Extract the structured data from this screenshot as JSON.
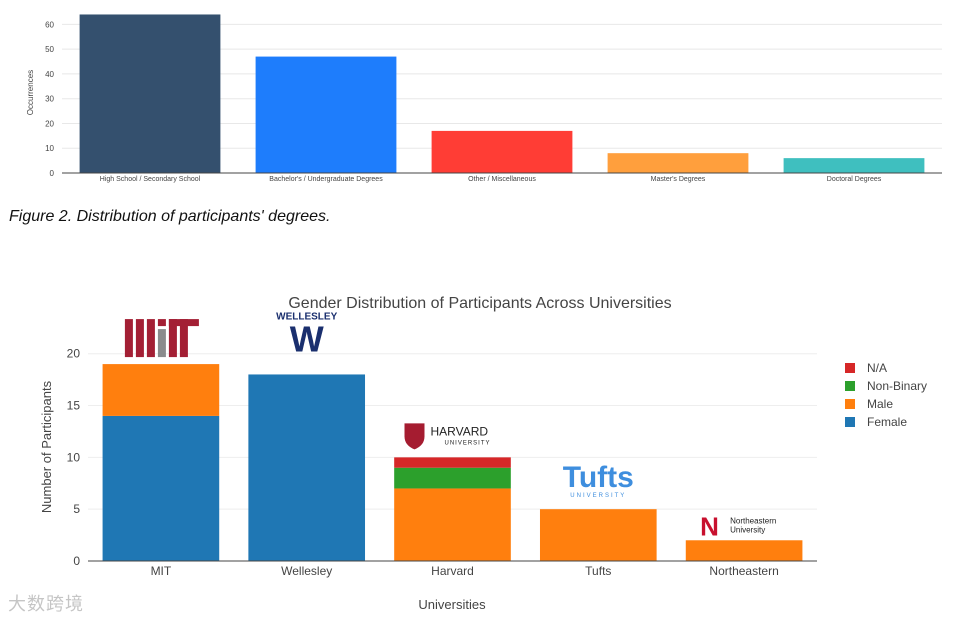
{
  "figure_caption": "Figure 2. Distribution of participants' degrees.",
  "watermark": "大数跨境",
  "chart_data": [
    {
      "type": "bar",
      "title": "",
      "xlabel": "",
      "ylabel": "Occurrences",
      "ylim": [
        0,
        65
      ],
      "yticks": [
        0,
        10,
        20,
        30,
        40,
        50,
        60
      ],
      "grid": true,
      "categories": [
        "High School / Secondary School",
        "Bachelor's / Undergraduate Degrees",
        "Other / Miscellaneous",
        "Master's Degrees",
        "Doctoral Degrees"
      ],
      "values": [
        64,
        47,
        17,
        8,
        6
      ],
      "colors": [
        "#34506e",
        "#1e7dfc",
        "#ff3d35",
        "#ff9f3d",
        "#3fbfbf"
      ]
    },
    {
      "type": "bar",
      "stacked": true,
      "title": "Gender Distribution of Participants Across Universities",
      "xlabel": "Universities",
      "ylabel": "Number of Participants",
      "ylim": [
        0,
        22
      ],
      "yticks": [
        0,
        5,
        10,
        15,
        20
      ],
      "grid": true,
      "legend_position": "right",
      "categories": [
        "MIT",
        "Wellesley",
        "Harvard",
        "Tufts",
        "Northeastern"
      ],
      "series": [
        {
          "name": "Female",
          "color": "#1f77b4",
          "values": [
            14,
            18,
            0,
            0,
            0
          ]
        },
        {
          "name": "Male",
          "color": "#ff7f0e",
          "values": [
            5,
            0,
            7,
            5,
            2
          ]
        },
        {
          "name": "Non-Binary",
          "color": "#2ca02c",
          "values": [
            0,
            0,
            2,
            0,
            0
          ]
        },
        {
          "name": "N/A",
          "color": "#d62728",
          "values": [
            0,
            0,
            1,
            0,
            0
          ]
        }
      ],
      "legend_order": [
        "N/A",
        "Non-Binary",
        "Male",
        "Female"
      ],
      "logos": [
        {
          "category": "MIT",
          "text": "MIT",
          "colors": [
            "#a31f34",
            "#8a8b8c"
          ]
        },
        {
          "category": "Wellesley",
          "text": "WELLESLEY",
          "glyph": "W",
          "color": "#1a2f6e"
        },
        {
          "category": "Harvard",
          "text": "HARVARD",
          "subtext": "UNIVERSITY",
          "color": "#a51c30"
        },
        {
          "category": "Tufts",
          "text": "Tufts",
          "subtext": "UNIVERSITY",
          "color": "#3e8ede"
        },
        {
          "category": "Northeastern",
          "text": "Northeastern",
          "subtext": "University",
          "color": "#c8102e"
        }
      ]
    }
  ]
}
